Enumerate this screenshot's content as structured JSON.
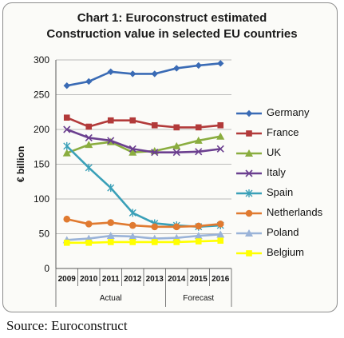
{
  "chart_data": {
    "type": "line",
    "title_lines": [
      "Chart 1: Euroconstruct estimated",
      "Construction value in selected EU countries"
    ],
    "ylabel": "€ billion",
    "xlabel": "",
    "ylim": [
      0,
      300
    ],
    "yticks": [
      0,
      50,
      100,
      150,
      200,
      250,
      300
    ],
    "grid": "horizontal",
    "legend_position": "right",
    "categories": [
      "2009",
      "2010",
      "2011",
      "2012",
      "2013",
      "2014",
      "2015",
      "2016"
    ],
    "x_groups": [
      {
        "label": "Actual",
        "from": "2009",
        "to": "2013"
      },
      {
        "label": "Forecast",
        "from": "2014",
        "to": "2016"
      }
    ],
    "series": [
      {
        "name": "Germany",
        "color": "#3a6bb5",
        "marker": "diamond",
        "values": [
          263,
          269,
          283,
          280,
          280,
          288,
          292,
          295
        ]
      },
      {
        "name": "France",
        "color": "#b23a3a",
        "marker": "square",
        "values": [
          217,
          204,
          213,
          213,
          206,
          203,
          203,
          206
        ]
      },
      {
        "name": "UK",
        "color": "#8aad3f",
        "marker": "triangle",
        "values": [
          166,
          178,
          182,
          167,
          169,
          176,
          184,
          190
        ]
      },
      {
        "name": "Italy",
        "color": "#6b3f8f",
        "marker": "x",
        "values": [
          200,
          188,
          184,
          172,
          167,
          167,
          168,
          172
        ]
      },
      {
        "name": "Spain",
        "color": "#3aa0b8",
        "marker": "star",
        "values": [
          176,
          145,
          116,
          80,
          65,
          62,
          60,
          62
        ]
      },
      {
        "name": "Netherlands",
        "color": "#e07a30",
        "marker": "circle",
        "values": [
          71,
          64,
          66,
          62,
          60,
          60,
          61,
          64
        ]
      },
      {
        "name": "Poland",
        "color": "#9ab3d8",
        "marker": "triangle",
        "values": [
          41,
          43,
          47,
          46,
          43,
          44,
          47,
          49
        ]
      },
      {
        "name": "Belgium",
        "color": "#ffff00",
        "marker": "square",
        "values": [
          37,
          37,
          38,
          38,
          38,
          38,
          39,
          40
        ]
      }
    ]
  },
  "source_note": "Source: Euroconstruct"
}
